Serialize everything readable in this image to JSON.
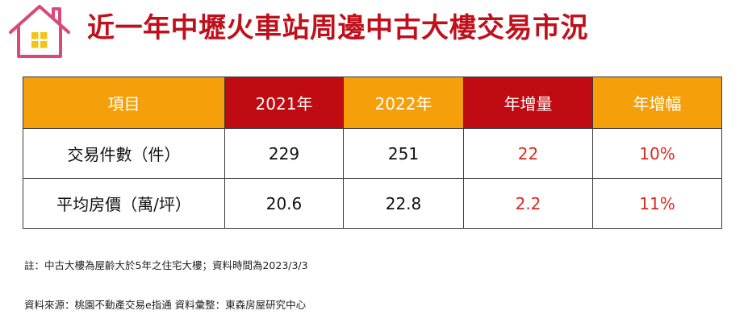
{
  "header": {
    "title": "近一年中壢火車站周邊中古大樓交易市況",
    "logo_color": "#d94a7a",
    "window_color": "#f2c414"
  },
  "table": {
    "columns": [
      "項目",
      "2021年",
      "2022年",
      "年增量",
      "年增幅"
    ],
    "rows": [
      [
        "交易件數（件）",
        "229",
        "251",
        "22",
        "10%"
      ],
      [
        "平均房價（萬/坪）",
        "20.6",
        "22.8",
        "2.2",
        "11%"
      ]
    ],
    "colors": {
      "orange": "#f5a00a",
      "red": "#c10b12",
      "highlight_text": "#d92a22"
    }
  },
  "notes": {
    "note": "註：中古大樓為屋齡大於5年之住宅大樓；資料時間為2023/3/3",
    "source": "資料來源：桃園不動產交易e指通 資料彙整：東森房屋研究中心"
  }
}
